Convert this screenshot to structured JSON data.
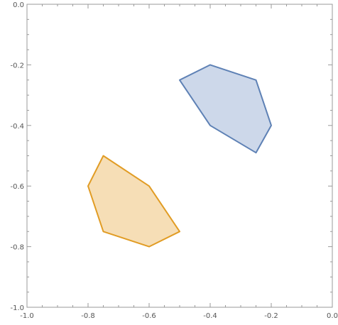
{
  "chart_data": {
    "type": "area",
    "title": "",
    "xlabel": "",
    "ylabel": "",
    "xlim": [
      -1.0,
      0.0
    ],
    "ylim": [
      -1.0,
      0.0
    ],
    "grid": false,
    "legend": "none",
    "x_ticks": [
      -1.0,
      -0.8,
      -0.6,
      -0.4,
      -0.2,
      0.0
    ],
    "x_tick_labels": [
      "-1.0",
      "-0.8",
      "-0.6",
      "-0.4",
      "-0.2",
      "0.0"
    ],
    "y_ticks": [
      0.0,
      -0.2,
      -0.4,
      -0.6,
      -0.8,
      -1.0
    ],
    "y_tick_labels": [
      "0.0",
      "-0.2",
      "-0.4",
      "-0.6",
      "-0.8",
      "-1.0"
    ],
    "series": [
      {
        "color": "#5E81B5",
        "fill": "#CDD8EA",
        "points": [
          [
            -0.4,
            -0.2
          ],
          [
            -0.25,
            -0.25
          ],
          [
            -0.2,
            -0.4
          ],
          [
            -0.25,
            -0.49
          ],
          [
            -0.4,
            -0.4
          ],
          [
            -0.5,
            -0.25
          ]
        ]
      },
      {
        "color": "#E19C24",
        "fill": "#F6DEB6",
        "points": [
          [
            -0.75,
            -0.5
          ],
          [
            -0.6,
            -0.6
          ],
          [
            -0.5,
            -0.75
          ],
          [
            -0.6,
            -0.8
          ],
          [
            -0.75,
            -0.75
          ],
          [
            -0.8,
            -0.6
          ]
        ]
      }
    ]
  }
}
